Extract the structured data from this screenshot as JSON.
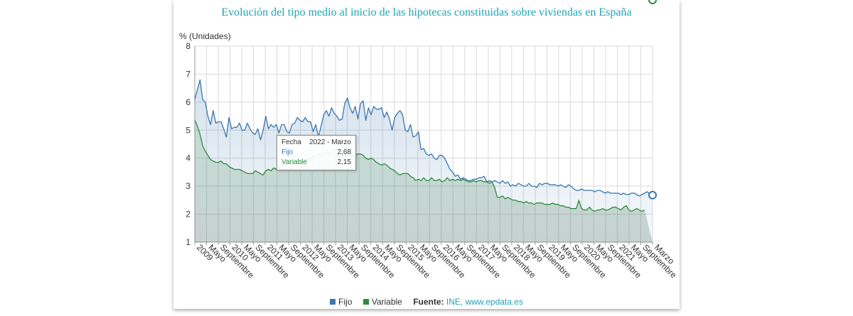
{
  "chart_data": {
    "type": "area",
    "title": "Evolución del tipo medio al inicio de las hipotecas constituidas sobre viviendas en España",
    "ylabel": "% (Unidades)",
    "ylim": [
      1,
      8
    ],
    "yticks": [
      1,
      2,
      3,
      4,
      5,
      6,
      7,
      8
    ],
    "grid": true,
    "x_start": "2009-01",
    "x_end": "2022-03",
    "x_tick_labels": [
      "2009",
      "Mayo",
      "Septiembre",
      "2010",
      "Mayo",
      "Septiembre",
      "2011",
      "Mayo",
      "Septiembre",
      "2012",
      "Mayo",
      "Septiembre",
      "2013",
      "Mayo",
      "Septiembre",
      "2014",
      "Mayo",
      "Septiembre",
      "2015",
      "Mayo",
      "Septiembre",
      "2016",
      "Mayo",
      "Septiembre",
      "2017",
      "Mayo",
      "Septiembre",
      "2018",
      "Mayo",
      "Septiembre",
      "2019",
      "Mayo",
      "Septiembre",
      "2020",
      "Mayo",
      "Septiembre",
      "2021",
      "Mayo",
      "Septiembre",
      "Marzo"
    ],
    "series": [
      {
        "name": "Fijo",
        "color": "#3a77b0",
        "values": [
          6.1,
          6.45,
          6.8,
          6.1,
          6.0,
          5.5,
          5.2,
          5.7,
          5.25,
          5.3,
          5.3,
          5.05,
          4.75,
          5.45,
          5.05,
          5.1,
          5.1,
          5.25,
          5.0,
          5.0,
          5.25,
          5.05,
          4.9,
          4.85,
          5.05,
          4.65,
          5.0,
          5.5,
          5.05,
          5.2,
          5.1,
          5.2,
          4.9,
          5.2,
          5.2,
          4.95,
          4.9,
          5.2,
          5.25,
          5.45,
          5.35,
          5.3,
          5.45,
          5.3,
          5.3,
          4.95,
          5.2,
          4.75,
          5.15,
          5.55,
          5.7,
          5.5,
          5.8,
          5.6,
          5.5,
          5.35,
          5.4,
          5.95,
          6.15,
          5.8,
          5.6,
          5.85,
          5.4,
          5.95,
          6.05,
          5.35,
          5.8,
          5.55,
          5.85,
          5.75,
          5.75,
          5.8,
          5.45,
          5.65,
          5.4,
          5.0,
          5.45,
          5.6,
          5.7,
          5.55,
          5.0,
          4.95,
          5.2,
          4.75,
          4.8,
          4.95,
          4.3,
          4.35,
          4.15,
          4.1,
          4.15,
          4.0,
          3.95,
          4.1,
          4.1,
          4.0,
          3.8,
          3.6,
          3.5,
          3.35,
          3.4,
          3.25,
          3.3,
          3.25,
          3.2,
          3.2,
          3.25,
          3.25,
          3.3,
          3.3,
          3.35,
          3.15,
          3.1,
          3.15,
          3.2,
          3.15,
          3.1,
          3.2,
          3.1,
          3.15,
          3.0,
          3.05,
          3.0,
          3.1,
          3.05,
          3.0,
          3.0,
          3.1,
          3.0,
          3.0,
          2.95,
          3.1,
          3.05,
          3.1,
          3.1,
          3.05,
          3.05,
          3.05,
          3.0,
          3.05,
          3.0,
          2.95,
          3.05,
          3.0,
          2.9,
          2.85,
          2.85,
          2.9,
          2.85,
          2.85,
          2.85,
          2.85,
          2.8,
          2.85,
          2.85,
          2.8,
          2.75,
          2.8,
          2.75,
          2.75,
          2.75,
          2.75,
          2.7,
          2.75,
          2.7,
          2.7,
          2.75,
          2.75,
          2.7,
          2.65,
          2.7,
          2.75,
          2.8,
          2.72,
          2.68
        ]
      },
      {
        "name": "Variable",
        "color": "#2e8b3e",
        "values": [
          5.35,
          5.15,
          4.85,
          4.45,
          4.25,
          4.1,
          3.95,
          3.9,
          3.85,
          3.85,
          3.9,
          3.8,
          3.8,
          3.7,
          3.65,
          3.6,
          3.6,
          3.6,
          3.55,
          3.5,
          3.45,
          3.45,
          3.45,
          3.55,
          3.5,
          3.45,
          3.4,
          3.55,
          3.6,
          3.55,
          3.65,
          3.6,
          3.7,
          3.75,
          3.7,
          3.8,
          3.8,
          3.85,
          3.85,
          3.9,
          3.85,
          3.95,
          3.9,
          4.0,
          3.95,
          4.1,
          4.05,
          4.15,
          4.1,
          4.15,
          4.2,
          4.15,
          4.25,
          4.3,
          4.3,
          4.3,
          4.35,
          4.4,
          4.45,
          4.25,
          4.05,
          4.1,
          4.15,
          4.15,
          4.1,
          4.0,
          3.95,
          4.0,
          3.95,
          3.85,
          3.8,
          3.75,
          3.8,
          3.75,
          3.65,
          3.6,
          3.55,
          3.45,
          3.4,
          3.45,
          3.45,
          3.45,
          3.35,
          3.3,
          3.2,
          3.25,
          3.2,
          3.3,
          3.2,
          3.2,
          3.3,
          3.2,
          3.2,
          3.25,
          3.15,
          3.2,
          3.3,
          3.2,
          3.25,
          3.2,
          3.25,
          3.2,
          3.25,
          3.2,
          3.15,
          3.15,
          3.2,
          3.15,
          3.2,
          3.2,
          3.15,
          3.15,
          3.2,
          3.15,
          2.95,
          2.6,
          2.6,
          2.65,
          2.55,
          2.6,
          2.55,
          2.5,
          2.5,
          2.45,
          2.45,
          2.4,
          2.45,
          2.4,
          2.4,
          2.35,
          2.4,
          2.4,
          2.4,
          2.35,
          2.35,
          2.35,
          2.4,
          2.35,
          2.35,
          2.3,
          2.3,
          2.25,
          2.25,
          2.2,
          2.2,
          2.2,
          2.5,
          2.2,
          2.15,
          2.15,
          2.25,
          2.15,
          2.1,
          2.15,
          2.15,
          2.2,
          2.15,
          2.15,
          2.2,
          2.25,
          2.25,
          2.2,
          2.15,
          2.25,
          2.3,
          2.15,
          2.1,
          2.15,
          2.2,
          2.15,
          2.1,
          2.15
        ]
      }
    ],
    "tooltip": {
      "header_label": "Fecha",
      "header_value": "2022 - Marzo",
      "rows": [
        {
          "label": "Fijo",
          "value": "2,68"
        },
        {
          "label": "Variable",
          "value": "2,15"
        }
      ]
    },
    "legend_position": "bottom"
  },
  "source": {
    "label": "Fuente:",
    "text": "INE, www.epdata.es"
  }
}
